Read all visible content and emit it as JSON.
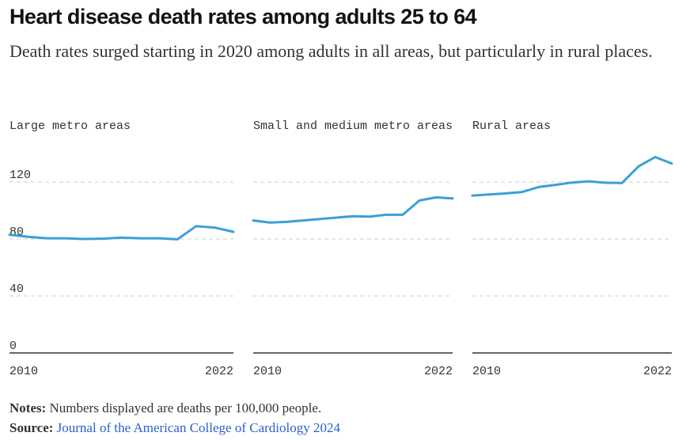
{
  "title": "Heart disease death rates among adults 25 to 64",
  "subtitle": "Death rates surged starting in 2020 among adults in all areas, but particularly in rural places.",
  "notes": {
    "notes_label": "Notes:",
    "notes_text": "Numbers displayed are deaths per 100,000 people.",
    "source_label": "Source:",
    "source_text": "Journal of the American College of Cardiology 2024"
  },
  "colors": {
    "line": "#3d9fd6",
    "grid": "#cccccc",
    "axis": "#333333",
    "text": "#333333"
  },
  "chart_data": {
    "type": "line",
    "x": [
      2010,
      2011,
      2012,
      2013,
      2014,
      2015,
      2016,
      2017,
      2018,
      2019,
      2020,
      2021,
      2022
    ],
    "ylim": [
      0,
      140
    ],
    "y_ticks": [
      0,
      40,
      80,
      120
    ],
    "x_tick_labels": [
      "2010",
      "2022"
    ],
    "grid": true,
    "panels": [
      {
        "title": "Large metro areas",
        "values": [
          83,
          81.5,
          80.5,
          80.5,
          80,
          80.2,
          81,
          80.5,
          80.5,
          79.8,
          89,
          88,
          85
        ]
      },
      {
        "title": "Small and medium metro areas",
        "values": [
          93,
          91.5,
          92,
          93,
          94,
          95,
          96,
          95.7,
          97,
          97,
          107,
          109.2,
          108.5
        ]
      },
      {
        "title": "Rural areas",
        "values": [
          110.5,
          111.2,
          112,
          113,
          116.5,
          118,
          119.6,
          120.5,
          119.5,
          119.3,
          131,
          137.5,
          133
        ]
      }
    ]
  }
}
